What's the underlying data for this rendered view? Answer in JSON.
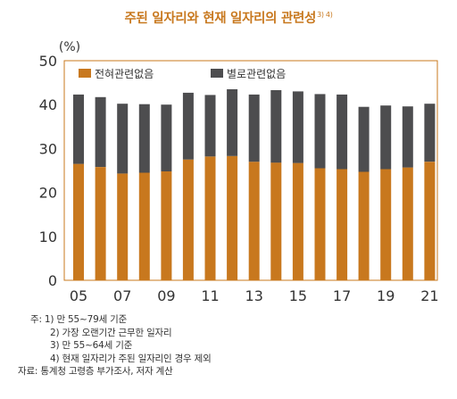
{
  "chart_data": {
    "type": "bar",
    "stacked": true,
    "title": "주된 일자리와 현재 일자리의 관련성",
    "title_superscript": "3) 4)",
    "ylabel": "(%)",
    "ylim": [
      0,
      50
    ],
    "yticks": [
      0,
      10,
      20,
      30,
      40,
      50
    ],
    "categories": [
      "05",
      "06",
      "07",
      "08",
      "09",
      "10",
      "11",
      "12",
      "13",
      "14",
      "15",
      "16",
      "17",
      "18",
      "19",
      "20",
      "21"
    ],
    "xtick_labels": [
      "05",
      "",
      "07",
      "",
      "09",
      "",
      "11",
      "",
      "13",
      "",
      "15",
      "",
      "17",
      "",
      "19",
      "",
      "21"
    ],
    "series": [
      {
        "name": "전혀관련없음",
        "color": "#c8781e",
        "values": [
          26.5,
          25.8,
          24.3,
          24.5,
          24.8,
          27.5,
          28.2,
          28.3,
          27.0,
          26.8,
          26.7,
          25.5,
          25.3,
          24.7,
          25.3,
          25.7,
          27.0
        ]
      },
      {
        "name": "별로관련없음",
        "color": "#4d4d4f",
        "values": [
          15.8,
          15.9,
          15.9,
          15.6,
          15.2,
          15.2,
          14.0,
          15.2,
          15.3,
          16.5,
          16.3,
          16.9,
          17.0,
          14.8,
          14.5,
          13.9,
          13.2
        ]
      }
    ],
    "legend_position": "top-left",
    "grid": false
  },
  "notes": [
    "주: 1) 만 55~79세 기준",
    "2) 가장 오랜기간 근무한 일자리",
    "3) 만 55~64세 기준",
    "4) 현재 일자리가 주된 일자리인 경우 제외"
  ],
  "source": "자료: 통계청 고령층 부가조사, 저자 계산"
}
